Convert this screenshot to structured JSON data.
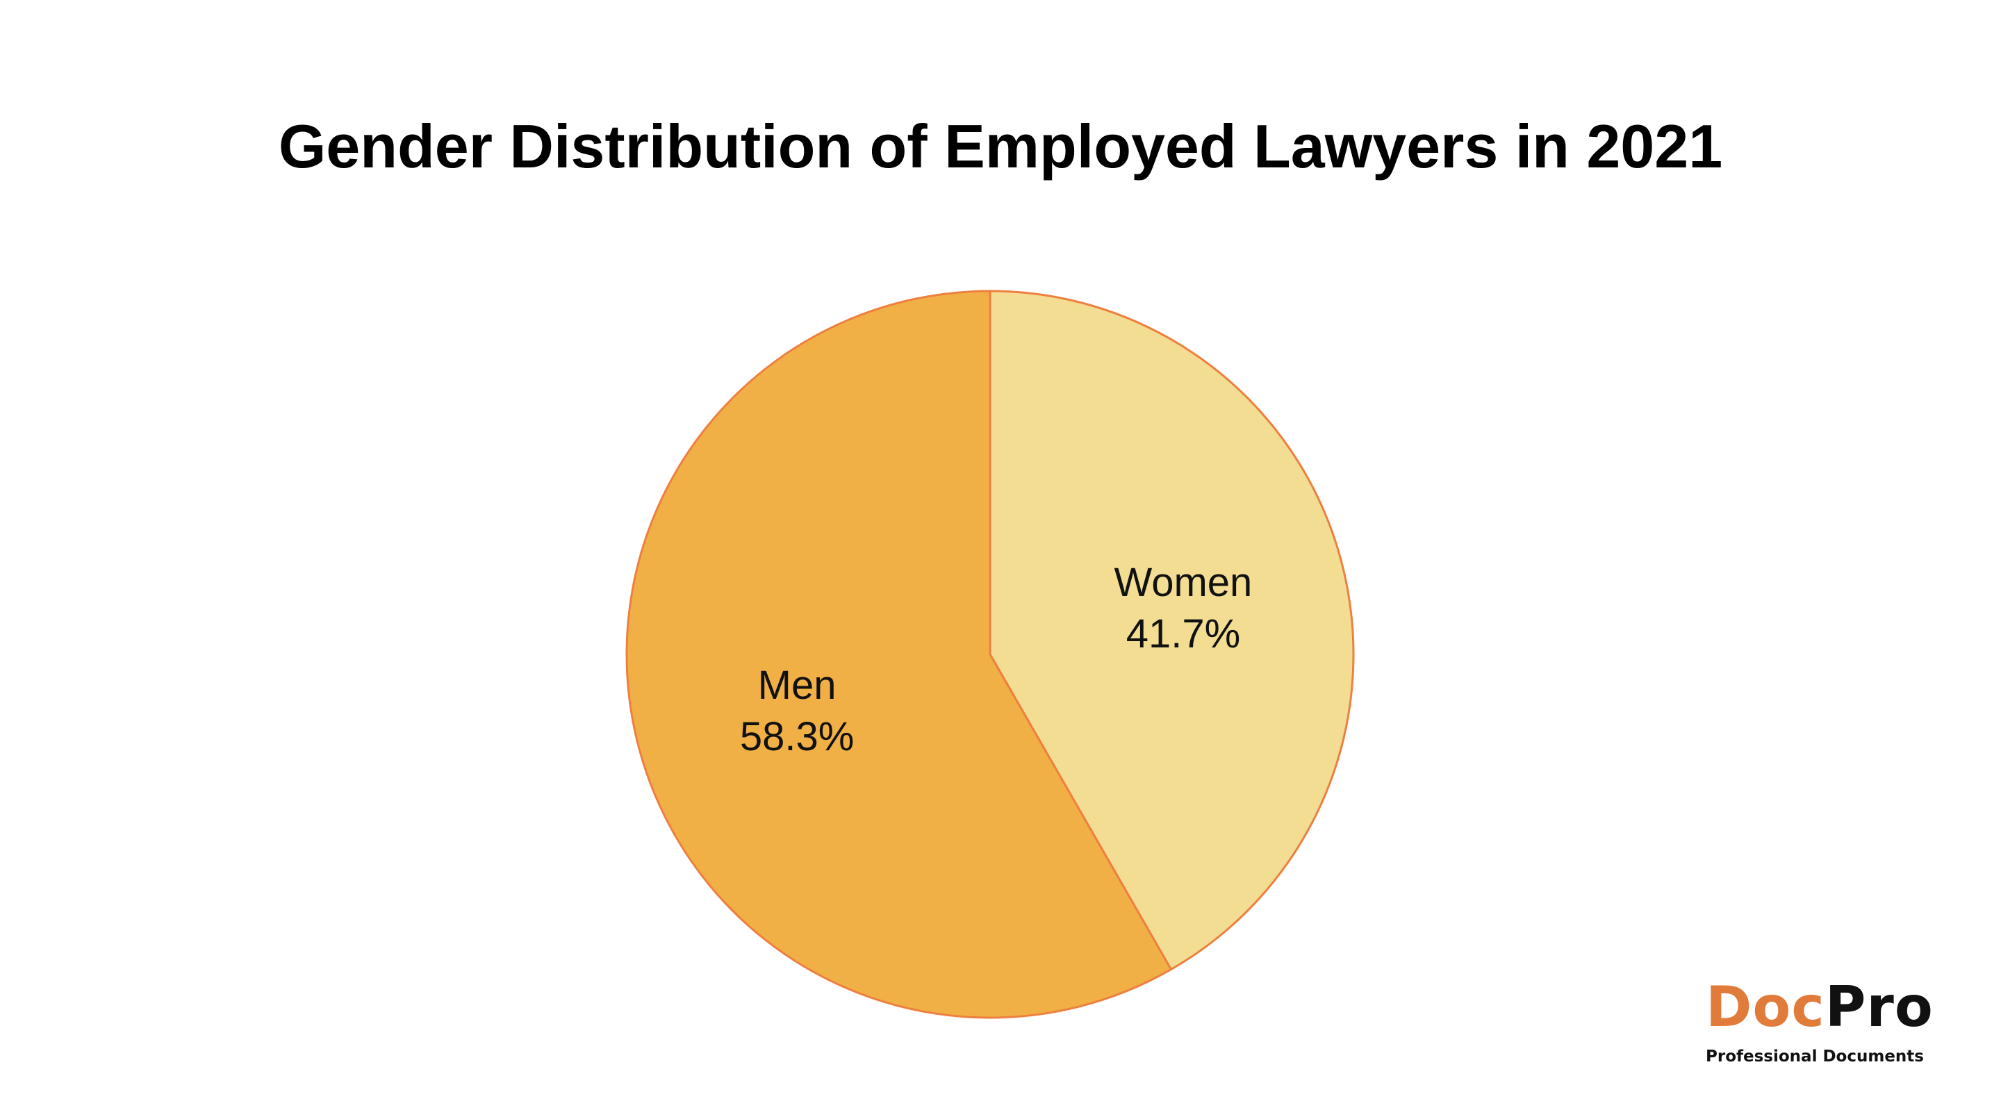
{
  "chart_data": {
    "type": "pie",
    "title": "Gender Distribution of Employed Lawyers in 2021",
    "slices": [
      {
        "label": "Women",
        "value": 41.7,
        "value_label": "41.7%",
        "color": "#f2dd93"
      },
      {
        "label": "Men",
        "value": 58.3,
        "value_label": "58.3%",
        "color": "#f0b045"
      }
    ],
    "start_angle": "12 o'clock",
    "direction": "clockwise",
    "edge_color": "#ee7f3f",
    "legend": "none"
  },
  "brand": {
    "name_part1": "Doc",
    "name_part2": "Pro",
    "tagline": "Professional Documents",
    "colors": {
      "part1": "#e07b3a",
      "part2": "#111111"
    }
  }
}
